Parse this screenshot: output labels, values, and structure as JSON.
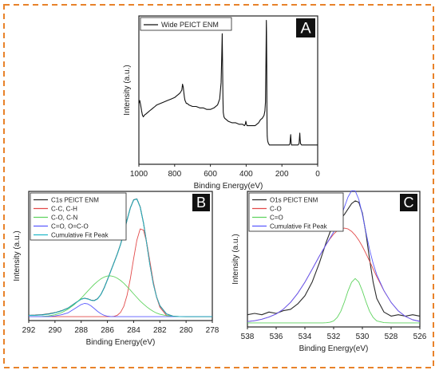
{
  "colors": {
    "frame": "#e8822a",
    "axis": "#222222",
    "panel_label_bg": "#111111",
    "panel_label_fg": "#ffffff"
  },
  "chart_data": [
    {
      "id": "A",
      "panel_label": "A",
      "type": "line",
      "xlabel": "Binding Energy(eV)",
      "ylabel": "Intensity (a.u.)",
      "xlim": [
        1000,
        0
      ],
      "xreversed": true,
      "ylim": [
        0,
        100
      ],
      "xticks": [
        1000,
        800,
        600,
        400,
        200,
        0
      ],
      "yticks_labeled": false,
      "legend": "top-left",
      "series": [
        {
          "name": "Wide PEICT ENM",
          "color": "#111111",
          "x": [
            1000,
            995,
            990,
            985,
            980,
            975,
            970,
            960,
            950,
            940,
            930,
            920,
            910,
            900,
            880,
            860,
            840,
            820,
            800,
            790,
            780,
            770,
            765,
            760,
            756,
            752,
            748,
            745,
            742,
            738,
            735,
            730,
            720,
            700,
            680,
            660,
            640,
            620,
            600,
            580,
            560,
            548,
            540,
            536,
            534,
            532,
            530,
            528,
            524,
            520,
            510,
            500,
            480,
            460,
            440,
            420,
            410,
            405,
            402,
            400,
            398,
            395,
            390,
            380,
            370,
            360,
            350,
            340,
            330,
            320,
            310,
            300,
            295,
            292,
            290,
            288,
            287,
            286,
            285,
            284,
            283,
            282,
            281,
            280,
            278,
            275,
            270,
            260,
            250,
            240,
            230,
            220,
            200,
            180,
            160,
            155,
            153,
            151,
            149,
            147,
            145,
            130,
            120,
            110,
            104,
            102,
            100,
            98,
            96,
            90,
            80,
            60,
            40,
            20,
            10,
            0
          ],
          "values": [
            41,
            43,
            40,
            36,
            33,
            32,
            33,
            34,
            35,
            36,
            37,
            38,
            39,
            40,
            41,
            42,
            43,
            44,
            45,
            46,
            47,
            48,
            49,
            50,
            54,
            52,
            48,
            45,
            43,
            42,
            41,
            41,
            40,
            39,
            39,
            38,
            38,
            37,
            37,
            38,
            40,
            44,
            55,
            75,
            88,
            70,
            45,
            35,
            32,
            31,
            30,
            29,
            28,
            28,
            27,
            27,
            26,
            27,
            29,
            28,
            27,
            26,
            26,
            26,
            26,
            26,
            26,
            27,
            28,
            30,
            31,
            33,
            36,
            42,
            60,
            85,
            97,
            90,
            68,
            40,
            25,
            19,
            17,
            16,
            15,
            14,
            13,
            13,
            13,
            13,
            13,
            13,
            13,
            13,
            13,
            14,
            17,
            20,
            16,
            13,
            13,
            13,
            13,
            13,
            14,
            18,
            21,
            17,
            14,
            13,
            13,
            13,
            13,
            13,
            13,
            13
          ]
        }
      ]
    },
    {
      "id": "B",
      "panel_label": "B",
      "type": "line",
      "xlabel": "Binding Energy(eV)",
      "ylabel": "Intensity (a.u.)",
      "xlim": [
        292,
        278
      ],
      "xreversed": true,
      "ylim": [
        0,
        100
      ],
      "xticks": [
        292,
        290,
        288,
        286,
        284,
        282,
        280,
        278
      ],
      "yticks_labeled": false,
      "legend": "top-left",
      "baseline": 3,
      "x": [
        292,
        291.5,
        291,
        290.5,
        290,
        289.5,
        289,
        288.5,
        288,
        287.75,
        287.5,
        287.25,
        287,
        286.75,
        286.5,
        286.25,
        286,
        285.75,
        285.5,
        285.25,
        285,
        284.75,
        284.5,
        284.25,
        284,
        283.75,
        283.5,
        283.25,
        283,
        282.75,
        282.5,
        282.25,
        282,
        281.5,
        281,
        280.5,
        280,
        279,
        278
      ],
      "series": [
        {
          "name": "C1s PEICT ENM",
          "color": "#2b2b2b",
          "values": [
            4.1,
            4.2,
            4.5,
            5.1,
            6.1,
            7.6,
            9.7,
            13.2,
            16.6,
            17.3,
            16.8,
            15.8,
            15.5,
            16.9,
            20.2,
            25.3,
            31.6,
            38.2,
            44.8,
            51.4,
            58.9,
            67.9,
            77.9,
            87.2,
            93.4,
            94.2,
            88.0,
            75.5,
            59.4,
            42.7,
            28.6,
            18.2,
            11.5,
            5.2,
            3.4,
            3.1,
            3.0,
            3.0,
            3.0
          ]
        },
        {
          "name": "C-C, C-H",
          "color": "#e24a4a",
          "values": [
            3.0,
            3.0,
            3.0,
            3.0,
            3.0,
            3.0,
            3.0,
            3.0,
            3.0,
            3.0,
            3.0,
            3.0,
            3.0,
            3.0,
            3.0,
            3.0,
            3.0,
            3.0,
            3.3,
            4.1,
            6.3,
            11.0,
            19.6,
            32.4,
            47.9,
            62.3,
            70.9,
            70.0,
            60.1,
            45.2,
            30.0,
            18.1,
            10.3,
            4.0,
            3.1,
            3.0,
            3.0,
            3.0,
            3.0
          ]
        },
        {
          "name": "C-O, C-N",
          "color": "#5fd35f",
          "values": [
            3.0,
            3.0,
            3.2,
            3.6,
            4.5,
            6.1,
            8.8,
            12.6,
            17.3,
            20.0,
            22.8,
            25.5,
            28.1,
            30.4,
            32.3,
            33.7,
            34.5,
            34.6,
            34.0,
            32.8,
            31.1,
            28.9,
            26.3,
            23.6,
            20.7,
            17.9,
            15.2,
            12.8,
            10.6,
            8.7,
            7.1,
            5.8,
            4.9,
            3.8,
            3.3,
            3.1,
            3.0,
            3.0,
            3.0
          ]
        },
        {
          "name": "C=O, O=C-O",
          "color": "#5a5aff",
          "values": [
            3.0,
            3.0,
            3.0,
            3.1,
            3.6,
            4.5,
            6.0,
            9.2,
            12.4,
            13.3,
            12.9,
            11.4,
            9.3,
            7.1,
            5.3,
            4.1,
            3.4,
            3.1,
            3.0,
            3.0,
            3.0,
            3.0,
            3.0,
            3.0,
            3.0,
            3.0,
            3.0,
            3.0,
            3.0,
            3.0,
            3.0,
            3.0,
            3.0,
            3.0,
            3.0,
            3.0,
            3.0,
            3.0,
            3.0
          ]
        },
        {
          "name": "Cumulative Fit Peak",
          "color": "#22b8c8",
          "values": [
            4.0,
            4.1,
            4.3,
            4.9,
            6.0,
            7.5,
            9.6,
            13.1,
            16.5,
            17.2,
            16.7,
            15.7,
            15.4,
            16.8,
            20.2,
            25.2,
            31.5,
            38.1,
            44.7,
            51.3,
            58.8,
            67.8,
            77.8,
            87.1,
            93.3,
            94.1,
            87.9,
            75.4,
            59.3,
            42.6,
            28.5,
            18.2,
            11.4,
            5.1,
            3.3,
            3.1,
            3.0,
            3.0,
            3.0
          ]
        }
      ]
    },
    {
      "id": "C",
      "panel_label": "C",
      "type": "line",
      "xlabel": "Binding Energy(eV)",
      "ylabel": "Intensity (a.u.)",
      "xlim": [
        538,
        526
      ],
      "xreversed": true,
      "ylim": [
        0,
        100
      ],
      "xticks": [
        538,
        536,
        534,
        532,
        530,
        528,
        526
      ],
      "yticks_labeled": false,
      "legend": "top-left",
      "baseline": 3,
      "x": [
        538,
        537.5,
        537,
        536.5,
        536,
        535.5,
        535,
        534.5,
        534,
        533.5,
        533,
        532.75,
        532.5,
        532.25,
        532,
        531.75,
        531.5,
        531.25,
        531,
        530.75,
        530.5,
        530.25,
        530,
        529.75,
        529.5,
        529.25,
        529,
        528.5,
        528,
        527.5,
        527,
        526.5,
        526
      ],
      "series": [
        {
          "name": "O1s PEICT ENM",
          "color": "#2b2b2b",
          "values": [
            9,
            10,
            9,
            11,
            10,
            12,
            13,
            17,
            23,
            33,
            47,
            55,
            63,
            70,
            75,
            78,
            80,
            83,
            87,
            91,
            93,
            92,
            84,
            69,
            50,
            33,
            21,
            11,
            8,
            9,
            8,
            9,
            8
          ]
        },
        {
          "name": "C-O",
          "color": "#e24a4a",
          "values": [
            4.0,
            4.6,
            5.7,
            7.3,
            9.6,
            13.1,
            18.1,
            24.8,
            33.0,
            42.4,
            52.1,
            56.7,
            61.1,
            65.1,
            68.5,
            71.0,
            72.5,
            72.9,
            72.3,
            70.5,
            67.7,
            64.0,
            59.4,
            54.2,
            48.6,
            42.8,
            37.1,
            26.7,
            18.1,
            11.8,
            7.7,
            5.3,
            4.1
          ]
        },
        {
          "name": "C=O",
          "color": "#5fd35f",
          "values": [
            3,
            3,
            3,
            3,
            3,
            3,
            3,
            3,
            3,
            3,
            3,
            3,
            3.1,
            3.5,
            4.5,
            7.0,
            11.6,
            18.5,
            26.5,
            33.0,
            35.7,
            33.1,
            26.6,
            18.6,
            11.6,
            7.0,
            4.5,
            3.2,
            3,
            3,
            3,
            3,
            3
          ]
        },
        {
          "name": "Cumulative Fit Peak",
          "color": "#5a5aff",
          "values": [
            4.0,
            4.6,
            5.7,
            7.3,
            9.6,
            13.1,
            18.1,
            24.8,
            33.0,
            42.4,
            52.1,
            56.7,
            61.2,
            65.6,
            70.0,
            75.0,
            81.1,
            88.4,
            95.8,
            100.5,
            100.4,
            94.1,
            83.0,
            69.8,
            57.2,
            46.8,
            38.6,
            26.9,
            18.1,
            11.8,
            7.7,
            5.3,
            4.1
          ]
        }
      ]
    }
  ]
}
